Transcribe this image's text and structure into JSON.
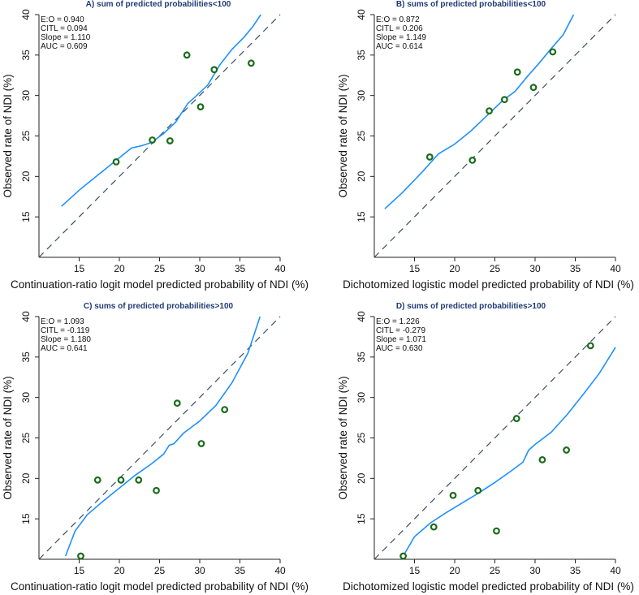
{
  "figure": {
    "colors": {
      "curve": "#1e90ff",
      "diagonal": "#3a4f66",
      "point_edge": "#1a6b1a",
      "axis": "#222222",
      "title": "#1f3a73"
    },
    "x_ticks": [
      15,
      20,
      25,
      30,
      35,
      40
    ],
    "y_ticks": [
      15,
      20,
      25,
      30,
      35,
      40
    ]
  },
  "chart_data": [
    {
      "type": "scatter",
      "title": "A) sum of predicted probabilities<100",
      "xlabel": "Continuation-ratio logit model predicted probability of NDI (%)",
      "ylabel": "Observed rate of NDI (%)",
      "xlim": [
        10,
        40
      ],
      "ylim": [
        10,
        40
      ],
      "stats": [
        "E:O = 0.940",
        "CITL = 0.094",
        "Slope = 1.110",
        "AUC = 0.609"
      ],
      "points": [
        [
          19.6,
          21.8
        ],
        [
          24.1,
          24.5
        ],
        [
          26.3,
          24.4
        ],
        [
          28.4,
          35.0
        ],
        [
          30.1,
          28.6
        ],
        [
          31.8,
          33.2
        ],
        [
          36.4,
          34.0
        ]
      ],
      "curve": [
        [
          12.8,
          16.3
        ],
        [
          15,
          18.3
        ],
        [
          17.5,
          20.3
        ],
        [
          20,
          22.3
        ],
        [
          21.5,
          23.5
        ],
        [
          22.8,
          23.8
        ],
        [
          24,
          24.2
        ],
        [
          25.5,
          25.3
        ],
        [
          27,
          26.7
        ],
        [
          28.5,
          29.0
        ],
        [
          29.5,
          29.9
        ],
        [
          31,
          31.3
        ],
        [
          32.5,
          33.8
        ],
        [
          34,
          35.7
        ],
        [
          35.5,
          37.2
        ],
        [
          36.6,
          38.5
        ],
        [
          37.6,
          40.0
        ]
      ],
      "diagonal": [
        [
          10,
          10
        ],
        [
          40,
          40
        ]
      ]
    },
    {
      "type": "scatter",
      "title": "B) sums of predicted probabilities<100",
      "xlabel": "Dichotomized logistic model predicted probability of NDI (%)",
      "ylabel": "Observed rate of NDI (%)",
      "xlim": [
        10,
        40
      ],
      "ylim": [
        10,
        40
      ],
      "stats": [
        "E:O = 0.872",
        "CITL = 0.206",
        "Slope = 1.149",
        "AUC = 0.614"
      ],
      "points": [
        [
          16.9,
          22.4
        ],
        [
          22.2,
          22.0
        ],
        [
          24.3,
          28.1
        ],
        [
          26.2,
          29.5
        ],
        [
          27.8,
          32.9
        ],
        [
          29.8,
          31.0
        ],
        [
          32.2,
          35.4
        ]
      ],
      "curve": [
        [
          11.3,
          16.0
        ],
        [
          13.5,
          18.0
        ],
        [
          16,
          20.6
        ],
        [
          18,
          22.8
        ],
        [
          20,
          24.0
        ],
        [
          22,
          25.6
        ],
        [
          24,
          27.5
        ],
        [
          26,
          29.4
        ],
        [
          27.5,
          30.5
        ],
        [
          29,
          32.3
        ],
        [
          30.5,
          34.0
        ],
        [
          32,
          35.8
        ],
        [
          33.5,
          37.5
        ],
        [
          34.8,
          40.0
        ]
      ],
      "diagonal": [
        [
          10,
          10
        ],
        [
          40,
          40
        ]
      ]
    },
    {
      "type": "scatter",
      "title": "C) sums of predicted probabilities>100",
      "xlabel": "Continuation-ratio logit model predicted probability of NDI (%)",
      "ylabel": "Observed rate of NDI (%)",
      "xlim": [
        10,
        40
      ],
      "ylim": [
        10,
        40
      ],
      "stats": [
        "E:O = 1.093",
        "CITL = -0.119",
        "Slope = 1.180",
        "AUC = 0.641"
      ],
      "points": [
        [
          15.2,
          10.4
        ],
        [
          17.3,
          19.8
        ],
        [
          20.2,
          19.8
        ],
        [
          22.4,
          19.8
        ],
        [
          24.6,
          18.5
        ],
        [
          27.2,
          29.3
        ],
        [
          30.2,
          24.3
        ],
        [
          33.1,
          28.5
        ]
      ],
      "curve": [
        [
          13.3,
          10.4
        ],
        [
          14.5,
          13.5
        ],
        [
          16,
          15.5
        ],
        [
          18,
          17.2
        ],
        [
          20,
          18.8
        ],
        [
          22,
          20.4
        ],
        [
          24,
          21.8
        ],
        [
          25.5,
          23.0
        ],
        [
          26.2,
          24.1
        ],
        [
          26.8,
          24.3
        ],
        [
          28,
          25.6
        ],
        [
          30,
          27.1
        ],
        [
          32,
          29.0
        ],
        [
          34,
          31.8
        ],
        [
          36,
          35.5
        ],
        [
          37.5,
          40.0
        ]
      ],
      "diagonal": [
        [
          10,
          10
        ],
        [
          40,
          40
        ]
      ]
    },
    {
      "type": "scatter",
      "title": "D) sums of predicted probabilities>100",
      "xlabel": "Dichotomized logistic model predicted probability of NDI (%)",
      "ylabel": "Observed rate of NDI (%)",
      "xlim": [
        10,
        40
      ],
      "ylim": [
        10,
        40
      ],
      "stats": [
        "E:O = 1.226",
        "CITL = -0.279",
        "Slope = 1.071",
        "AUC = 0.630"
      ],
      "points": [
        [
          13.6,
          10.4
        ],
        [
          17.4,
          14.0
        ],
        [
          19.8,
          17.9
        ],
        [
          22.9,
          18.5
        ],
        [
          25.2,
          13.5
        ],
        [
          27.7,
          27.4
        ],
        [
          30.9,
          22.3
        ],
        [
          33.9,
          23.5
        ],
        [
          36.9,
          36.4
        ]
      ],
      "curve": [
        [
          13.6,
          10.4
        ],
        [
          15,
          12.8
        ],
        [
          17,
          14.5
        ],
        [
          19,
          15.8
        ],
        [
          21,
          17.0
        ],
        [
          23,
          18.2
        ],
        [
          25,
          19.5
        ],
        [
          27,
          20.9
        ],
        [
          28.5,
          22.0
        ],
        [
          29.2,
          23.5
        ],
        [
          30,
          24.2
        ],
        [
          32,
          25.7
        ],
        [
          34,
          27.9
        ],
        [
          36,
          30.4
        ],
        [
          38,
          33.0
        ],
        [
          40,
          36.2
        ]
      ],
      "diagonal": [
        [
          10,
          10
        ],
        [
          40,
          40
        ]
      ]
    }
  ]
}
